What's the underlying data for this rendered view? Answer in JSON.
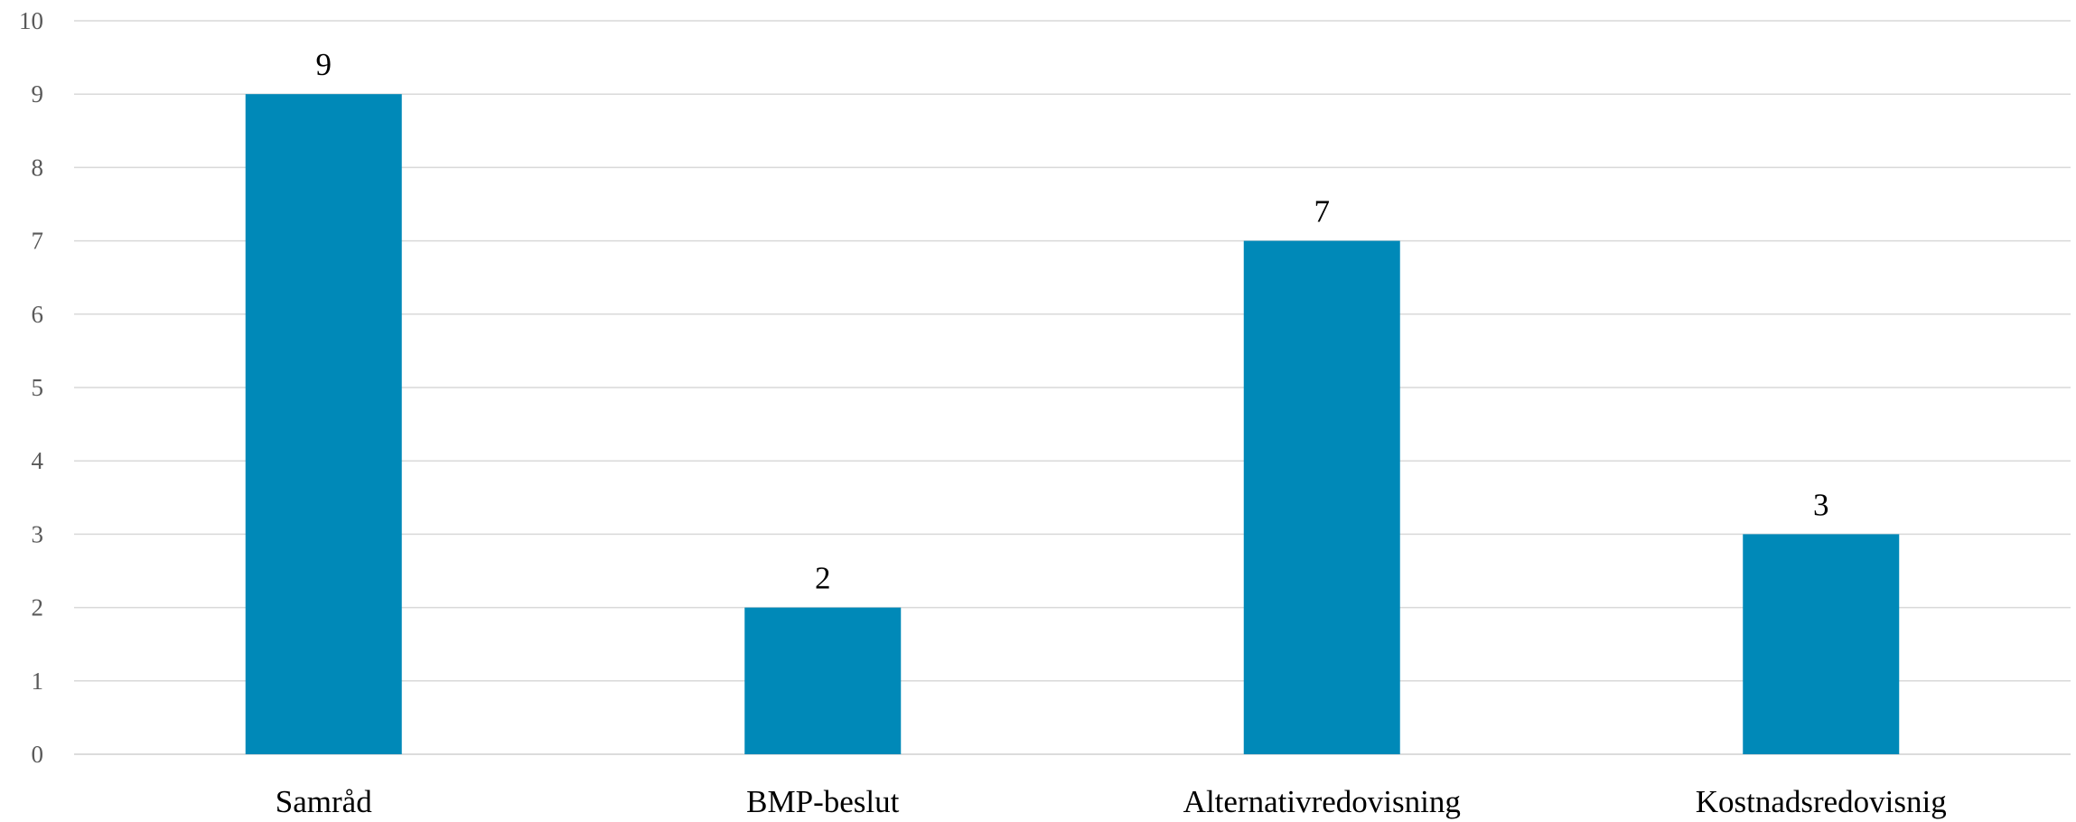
{
  "chart_data": {
    "type": "bar",
    "categories": [
      "Samråd",
      "BMP-beslut",
      "Alternativredovisning",
      "Kostnadsredovisnig"
    ],
    "values": [
      9,
      2,
      7,
      3
    ],
    "data_labels": [
      "9",
      "2",
      "7",
      "3"
    ],
    "title": "",
    "xlabel": "",
    "ylabel": "",
    "ylim": [
      0,
      10
    ],
    "yticks": [
      "0",
      "1",
      "2",
      "3",
      "4",
      "5",
      "6",
      "7",
      "8",
      "9",
      "10"
    ],
    "grid": true,
    "legend": "none",
    "colors": {
      "bar": "#0089b8"
    }
  }
}
